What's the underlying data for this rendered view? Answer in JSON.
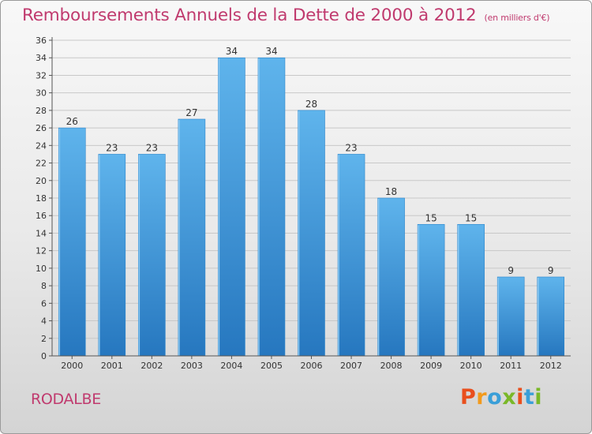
{
  "header": {
    "title": "Remboursements Annuels de la Dette de 2000 à 2012",
    "unit": "(en milliers d'€)"
  },
  "footer": {
    "commune": "RODALBE",
    "logo_text": "Proxiti",
    "logo_colors": [
      "#e94f1d",
      "#f29a1c",
      "#3a9fd8",
      "#7ab828",
      "#e94f1d",
      "#3a9fd8",
      "#7ab828"
    ]
  },
  "colors": {
    "bar_light": "#5ab0ea",
    "bar_dark": "#2a7fc5",
    "title": "#c03a6e",
    "grid": "#c8c8c8",
    "axis": "#555555"
  },
  "chart_data": {
    "type": "bar",
    "title": "Remboursements Annuels de la Dette de 2000 à 2012",
    "xlabel": "",
    "ylabel": "",
    "categories": [
      "2000",
      "2001",
      "2002",
      "2003",
      "2004",
      "2005",
      "2006",
      "2007",
      "2008",
      "2009",
      "2010",
      "2011",
      "2012"
    ],
    "values": [
      26,
      23,
      23,
      27,
      34,
      34,
      28,
      23,
      18,
      15,
      15,
      9,
      9
    ],
    "ylim": [
      0,
      36
    ],
    "yticks": [
      0,
      2,
      4,
      6,
      8,
      10,
      12,
      14,
      16,
      18,
      20,
      22,
      24,
      26,
      28,
      30,
      32,
      34,
      36
    ],
    "grid": true,
    "data_labels": true
  }
}
